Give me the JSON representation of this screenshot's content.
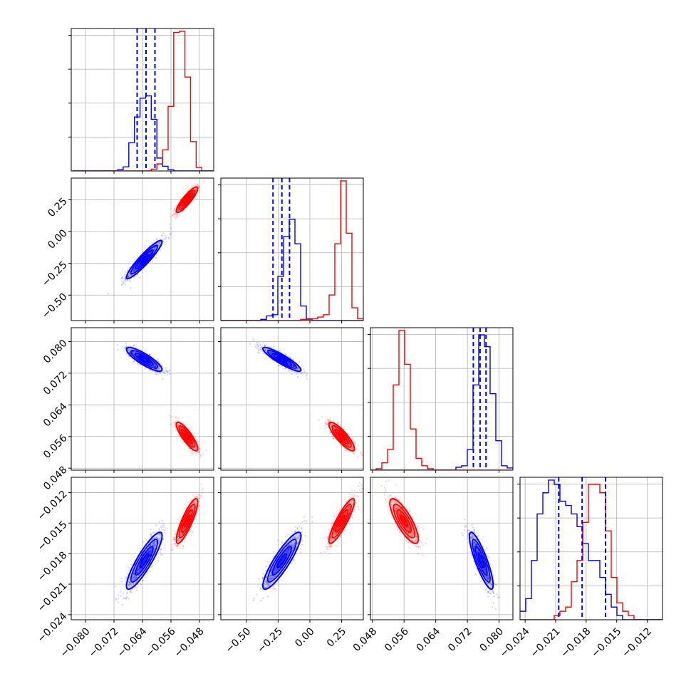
{
  "colors": {
    "model_a": "#0000ff",
    "model_b": "#ff0000",
    "grid": "#b0b0b0",
    "frame": "#000000"
  },
  "chart_data": {
    "type": "corner",
    "grid": true,
    "parameters": [
      {
        "range": [
          -0.084,
          -0.044
        ],
        "ticks": [
          "−0.080",
          "−0.072",
          "−0.064",
          "−0.056",
          "−0.048"
        ],
        "tick_values": [
          -0.08,
          -0.072,
          -0.064,
          -0.056,
          -0.048
        ]
      },
      {
        "range": [
          -0.7,
          0.42
        ],
        "ticks": [
          "−0.50",
          "−0.25",
          "0.00",
          "0.25"
        ],
        "tick_values": [
          -0.5,
          -0.25,
          0.0,
          0.25
        ]
      },
      {
        "range": [
          0.0475,
          0.0835
        ],
        "ticks": [
          "0.048",
          "0.056",
          "0.064",
          "0.072",
          "0.080"
        ],
        "tick_values": [
          0.048,
          0.056,
          0.064,
          0.072,
          0.08
        ]
      },
      {
        "range": [
          -0.0245,
          -0.0105
        ],
        "ticks": [
          "−0.024",
          "−0.021",
          "−0.018",
          "−0.015",
          "−0.012"
        ],
        "tick_values": [
          -0.024,
          -0.021,
          -0.018,
          -0.015,
          -0.012
        ]
      }
    ],
    "series": [
      {
        "color": "#0000ff",
        "mean": [
          -0.0635,
          -0.22,
          0.0755,
          -0.0187
        ],
        "sd": [
          0.0025,
          0.075,
          0.0015,
          0.0014
        ],
        "quantiles": [
          [
            -0.0655,
            -0.063,
            -0.0605
          ],
          [
            -0.29,
            -0.22,
            -0.16
          ],
          [
            0.0735,
            0.0752,
            0.0767
          ],
          [
            -0.0207,
            -0.0184,
            -0.0161
          ]
        ]
      },
      {
        "color": "#ff0000",
        "mean": [
          -0.0515,
          0.25,
          0.056,
          -0.0148
        ],
        "sd": [
          0.0015,
          0.05,
          0.0018,
          0.0011
        ]
      }
    ],
    "histograms": [
      {
        "bins": [
          -0.0836,
          -0.0442,
          25
        ],
        "blue": [
          0,
          0,
          0,
          0,
          0,
          0,
          0,
          0,
          2,
          7,
          48,
          92,
          124,
          128,
          88,
          22,
          8,
          2,
          0,
          0,
          0,
          0,
          0,
          0,
          0
        ],
        "red": [
          0,
          0,
          0,
          0,
          0,
          0,
          0,
          0,
          0,
          0,
          0,
          0,
          0,
          0,
          3,
          12,
          36,
          110,
          236,
          238,
          160,
          50,
          6,
          0,
          0
        ]
      },
      {
        "bins": [
          -0.7,
          0.42,
          25
        ],
        "blue": [
          0,
          0,
          0,
          0,
          0,
          0,
          0,
          2,
          8,
          10,
          76,
          144,
          174,
          132,
          25,
          3,
          0,
          0,
          0,
          0,
          0,
          0,
          0,
          0,
          0
        ],
        "red": [
          0,
          0,
          0,
          0,
          0,
          0,
          0,
          0,
          0,
          0,
          0,
          0,
          0,
          0,
          2,
          2,
          3,
          6,
          10,
          44,
          132,
          240,
          150,
          22,
          3
        ]
      },
      {
        "bins": [
          0.0475,
          0.0835,
          25
        ],
        "blue": [
          0,
          0,
          0,
          0,
          0,
          0,
          0,
          0,
          0,
          0,
          0,
          0,
          0,
          0,
          0,
          4,
          6,
          28,
          116,
          184,
          168,
          104,
          40,
          6,
          3
        ],
        "red": [
          0,
          2,
          10,
          28,
          116,
          190,
          144,
          56,
          16,
          6,
          2,
          0,
          0,
          0,
          0,
          0,
          0,
          0,
          0,
          0,
          0,
          0,
          0,
          0,
          0
        ]
      },
      {
        "bins": [
          -0.0245,
          -0.0105,
          25
        ],
        "blue": [
          4,
          10,
          28,
          50,
          60,
          66,
          64,
          56,
          54,
          50,
          44,
          36,
          28,
          28,
          20,
          12,
          6,
          2,
          0,
          0,
          0,
          0,
          0,
          0,
          0
        ],
        "red": [
          0,
          0,
          0,
          0,
          0,
          0,
          2,
          4,
          6,
          18,
          28,
          46,
          64,
          64,
          60,
          42,
          20,
          8,
          4,
          2,
          0,
          0,
          0,
          0,
          0
        ]
      }
    ],
    "correlations": [
      {
        "pair": [
          1,
          0
        ],
        "blue": 0.93,
        "red": 0.88
      },
      {
        "pair": [
          2,
          0
        ],
        "blue": -0.85,
        "red": -0.85
      },
      {
        "pair": [
          2,
          1
        ],
        "blue": -0.9,
        "red": -0.85
      },
      {
        "pair": [
          3,
          0
        ],
        "blue": 0.88,
        "red": 0.85
      },
      {
        "pair": [
          3,
          1
        ],
        "blue": 0.88,
        "red": 0.88
      },
      {
        "pair": [
          3,
          2
        ],
        "blue": -0.85,
        "red": -0.8
      }
    ]
  }
}
